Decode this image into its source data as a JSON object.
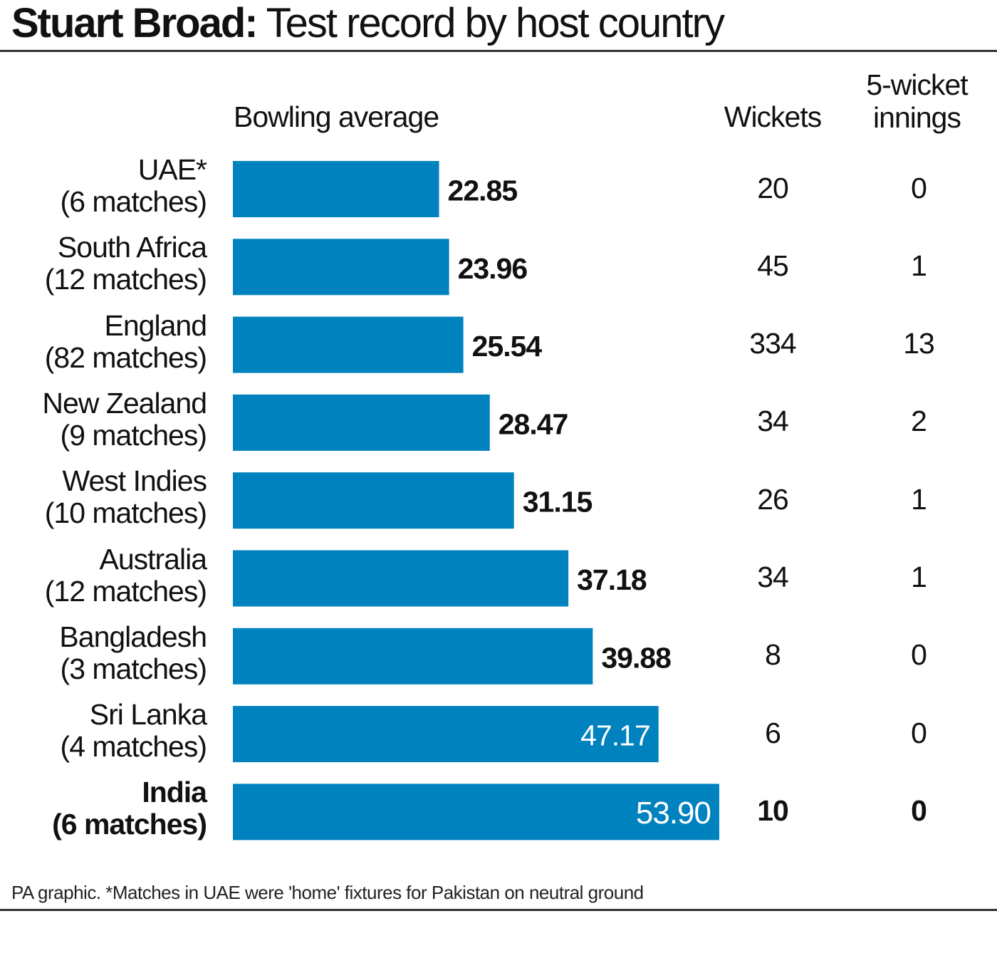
{
  "title_bold": "Stuart Broad:",
  "title_rest": " Test record by host country",
  "headers": {
    "bowling": "Bowling average",
    "wickets": "Wickets",
    "five_line1": "5-wicket",
    "five_line2": "innings"
  },
  "footnote": "PA graphic. *Matches in UAE were 'home' fixtures for Pakistan on neutral ground",
  "colors": {
    "bar": "#0082bf",
    "text": "#111111",
    "inside_label": "#ffffff"
  },
  "chart_data": {
    "type": "bar",
    "orientation": "horizontal",
    "categories": [
      "UAE*",
      "South Africa",
      "England",
      "New Zealand",
      "West Indies",
      "Australia",
      "Bangladesh",
      "Sri Lanka",
      "India"
    ],
    "matches": [
      "(6 matches)",
      "(12 matches)",
      "(82 matches)",
      "(9 matches)",
      "(10 matches)",
      "(12 matches)",
      "(3 matches)",
      "(4 matches)",
      "(6 matches)"
    ],
    "values": [
      22.85,
      23.96,
      25.54,
      28.47,
      31.15,
      37.18,
      39.88,
      47.17,
      53.9
    ],
    "value_labels": [
      "22.85",
      "23.96",
      "25.54",
      "28.47",
      "31.15",
      "37.18",
      "39.88",
      "47.17",
      "53.90"
    ],
    "wickets": [
      "20",
      "45",
      "334",
      "34",
      "26",
      "34",
      "8",
      "6",
      "10"
    ],
    "five_wicket_innings": [
      "0",
      "1",
      "13",
      "2",
      "1",
      "1",
      "0",
      "0",
      "0"
    ],
    "highlight": "India",
    "xlim": [
      0,
      53.9
    ],
    "grid": false
  }
}
